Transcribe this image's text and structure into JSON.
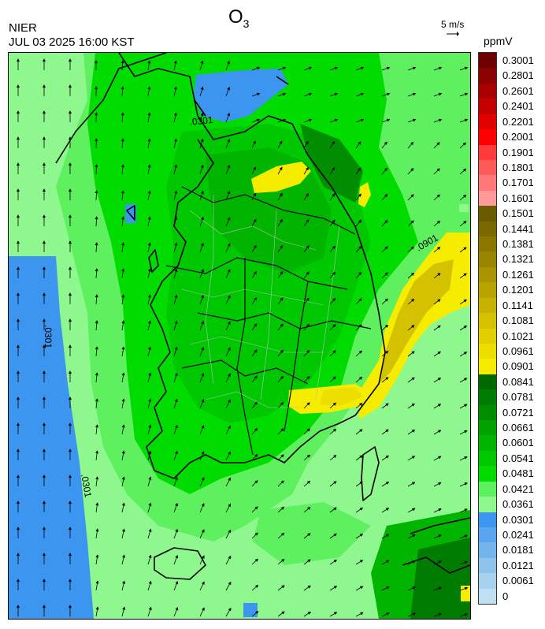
{
  "header": {
    "title": "O",
    "title_sub": "3",
    "agency": "NIER",
    "timestamp": "JUL 03 2025 16:00 KST",
    "wind_reference": "5 m/s",
    "unit": "ppmV"
  },
  "map": {
    "field": "O3 concentration",
    "contour_labels": [
      ".0301",
      ".0301",
      ".0301",
      ".0901"
    ],
    "bins": [
      {
        "label": "0.3001",
        "color": "#6e0000"
      },
      {
        "label": "0.2801",
        "color": "#8b0000"
      },
      {
        "label": "0.2601",
        "color": "#a80000"
      },
      {
        "label": "0.2401",
        "color": "#c40000"
      },
      {
        "label": "0.2201",
        "color": "#e00000"
      },
      {
        "label": "0.2001",
        "color": "#ff0000"
      },
      {
        "label": "0.1901",
        "color": "#ff3a3a"
      },
      {
        "label": "0.1801",
        "color": "#ff5a5a"
      },
      {
        "label": "0.1701",
        "color": "#ff7878"
      },
      {
        "label": "0.1601",
        "color": "#ff9a9a"
      },
      {
        "label": "0.1501",
        "color": "#6a5a00"
      },
      {
        "label": "0.1441",
        "color": "#7a6800"
      },
      {
        "label": "0.1381",
        "color": "#8a7600"
      },
      {
        "label": "0.1321",
        "color": "#9a8500"
      },
      {
        "label": "0.1261",
        "color": "#aa9400"
      },
      {
        "label": "0.1201",
        "color": "#b9a300"
      },
      {
        "label": "0.1141",
        "color": "#c7b200"
      },
      {
        "label": "0.1081",
        "color": "#d4c100"
      },
      {
        "label": "0.1021",
        "color": "#e0d000"
      },
      {
        "label": "0.0961",
        "color": "#ecdf00"
      },
      {
        "label": "0.0901",
        "color": "#f5ec00"
      },
      {
        "label": "0.0841",
        "color": "#006a00"
      },
      {
        "label": "0.0781",
        "color": "#007c00"
      },
      {
        "label": "0.0721",
        "color": "#008e00"
      },
      {
        "label": "0.0661",
        "color": "#00a200"
      },
      {
        "label": "0.0601",
        "color": "#00b400"
      },
      {
        "label": "0.0541",
        "color": "#00c800"
      },
      {
        "label": "0.0481",
        "color": "#00dc00"
      },
      {
        "label": "0.0421",
        "color": "#5ef05e"
      },
      {
        "label": "0.0361",
        "color": "#8ef88e"
      },
      {
        "label": "0.0301",
        "color": "#3c96f0"
      },
      {
        "label": "0.0241",
        "color": "#5aa6ee"
      },
      {
        "label": "0.0181",
        "color": "#74b4ec"
      },
      {
        "label": "0.0121",
        "color": "#8ec4ec"
      },
      {
        "label": "0.0061",
        "color": "#a6d2ee"
      },
      {
        "label": "0",
        "color": "#bfe0f2"
      }
    ]
  }
}
